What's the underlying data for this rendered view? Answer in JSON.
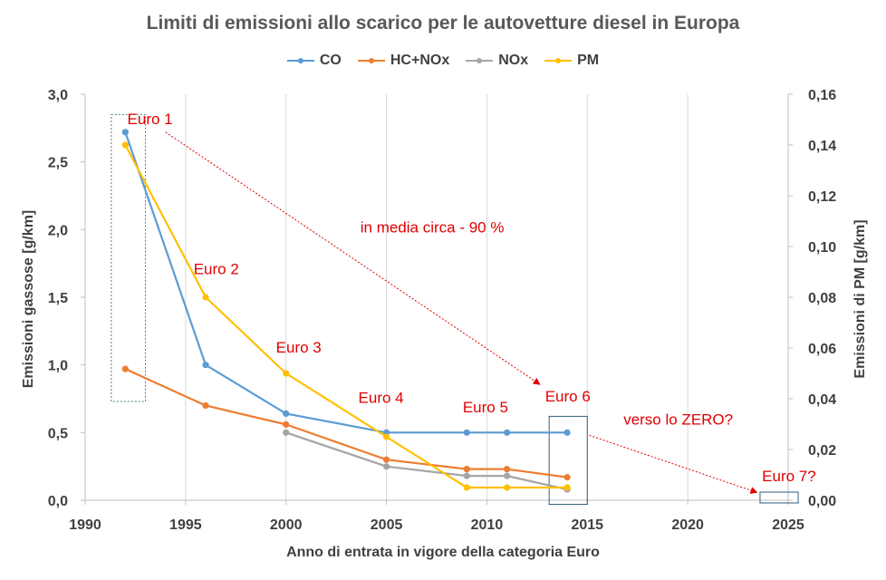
{
  "chart_data": {
    "type": "line",
    "title": "Limiti di emissioni allo scarico per le autovetture diesel in Europa",
    "xlabel": "Anno di entrata in vigore della categoria Euro",
    "ylabel_left": "Emissioni gassose [g/km]",
    "ylabel_right": "Emissioni di PM [g/km]",
    "xlim": [
      1990,
      2025
    ],
    "xticks": [
      "1990",
      "1995",
      "2000",
      "2005",
      "2010",
      "2015",
      "2020",
      "2025"
    ],
    "ylim_left": [
      0,
      3
    ],
    "yticks_left": [
      "0,0",
      "0,5",
      "1,0",
      "1,5",
      "2,0",
      "2,5",
      "3,0"
    ],
    "ylim_right": [
      0,
      0.16
    ],
    "yticks_right": [
      "0,00",
      "0,02",
      "0,04",
      "0,06",
      "0,08",
      "0,10",
      "0,12",
      "0,14",
      "0,16"
    ],
    "grid": "vertical",
    "legend_position": "top",
    "series": [
      {
        "name": "CO",
        "color": "#5b9bd5",
        "axis": "left",
        "points": [
          [
            1992,
            2.72
          ],
          [
            1996,
            1.0
          ],
          [
            2000,
            0.64
          ],
          [
            2005,
            0.5
          ],
          [
            2009,
            0.5
          ],
          [
            2011,
            0.5
          ],
          [
            2014,
            0.5
          ]
        ]
      },
      {
        "name": "HC+NOx",
        "color": "#ed7d31",
        "axis": "left",
        "points": [
          [
            1992,
            0.97
          ],
          [
            1996,
            0.7
          ],
          [
            2000,
            0.56
          ],
          [
            2005,
            0.3
          ],
          [
            2009,
            0.23
          ],
          [
            2011,
            0.23
          ],
          [
            2014,
            0.17
          ]
        ]
      },
      {
        "name": "NOx",
        "color": "#a5a5a5",
        "axis": "left",
        "points": [
          [
            2000,
            0.5
          ],
          [
            2005,
            0.25
          ],
          [
            2009,
            0.18
          ],
          [
            2011,
            0.18
          ],
          [
            2014,
            0.08
          ]
        ]
      },
      {
        "name": "PM",
        "color": "#ffc000",
        "axis": "right",
        "points": [
          [
            1992,
            0.14
          ],
          [
            1996,
            0.08
          ],
          [
            2000,
            0.05
          ],
          [
            2005,
            0.025
          ],
          [
            2009,
            0.005
          ],
          [
            2011,
            0.005
          ],
          [
            2014,
            0.005
          ]
        ]
      }
    ],
    "annotations": [
      {
        "text": "Euro 1",
        "x": 1992.1,
        "y": 2.78
      },
      {
        "text": "Euro 2",
        "x": 1995.4,
        "y": 1.67
      },
      {
        "text": "Euro 3",
        "x": 1999.5,
        "y": 1.09
      },
      {
        "text": "Euro 4",
        "x": 2003.6,
        "y": 0.72
      },
      {
        "text": "Euro 5",
        "x": 2008.8,
        "y": 0.65
      },
      {
        "text": "Euro 6",
        "x": 2012.9,
        "y": 0.73
      },
      {
        "text": "Euro 7?",
        "x": 2023.7,
        "y": 0.14
      },
      {
        "text": "in media circa - 90 %",
        "x": 2003.7,
        "y": 1.98
      },
      {
        "text": "verso lo ZERO?",
        "x": 2016.8,
        "y": 0.56
      }
    ],
    "arrows": [
      {
        "from": [
          1994.0,
          2.72
        ],
        "to": [
          2012.6,
          0.86
        ]
      },
      {
        "from": [
          2015.1,
          0.48
        ],
        "to": [
          2023.4,
          0.06
        ]
      }
    ],
    "highlight_boxes": [
      {
        "x": [
          1991.3,
          1993.0
        ],
        "y": [
          0.73,
          2.85
        ]
      },
      {
        "x": [
          2013.1,
          2015.0
        ],
        "y": [
          -0.03,
          0.62
        ]
      },
      {
        "x": [
          2023.6,
          2025.5
        ],
        "y": [
          -0.02,
          0.06
        ]
      }
    ]
  }
}
